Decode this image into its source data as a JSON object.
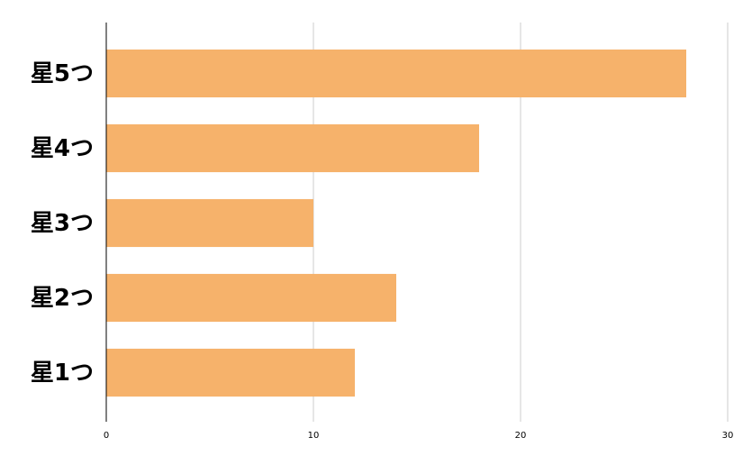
{
  "chart_data": {
    "type": "bar",
    "orientation": "horizontal",
    "categories": [
      "星5つ",
      "星4つ",
      "星3つ",
      "星2つ",
      "星1つ"
    ],
    "values": [
      28,
      18,
      10,
      14,
      12
    ],
    "color": "#f6b26b",
    "xlim": [
      0,
      30
    ],
    "xticks": [
      0,
      10,
      20,
      30
    ],
    "grid": true
  }
}
